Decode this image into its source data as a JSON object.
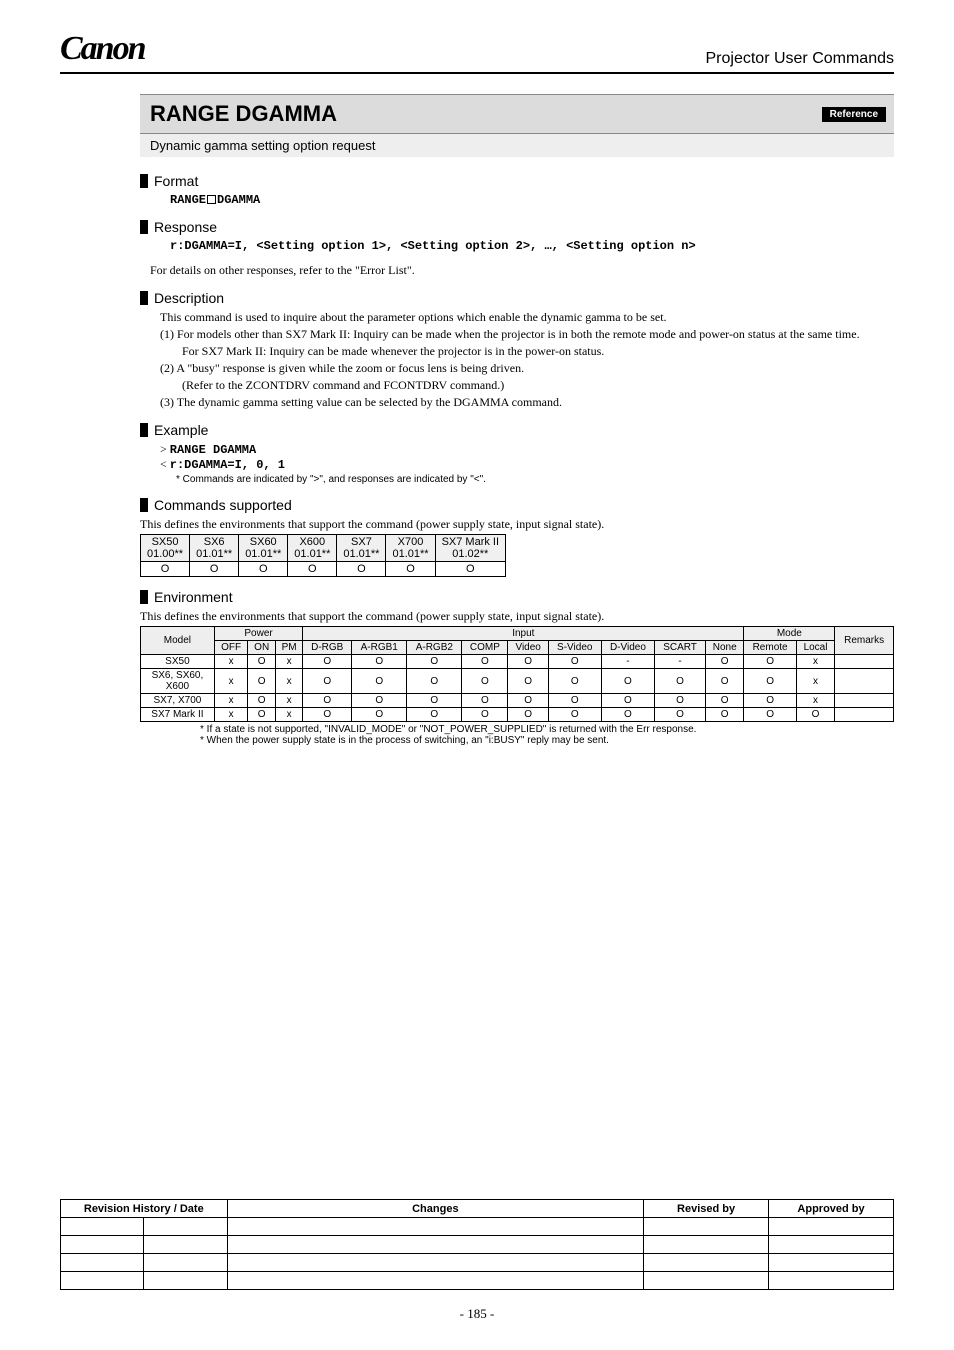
{
  "header": {
    "logo_text": "Canon",
    "doc_title": "Projector User Commands"
  },
  "title": {
    "main": "RANGE DGAMMA",
    "ref_badge": "Reference",
    "subtitle": "Dynamic gamma setting option request"
  },
  "format": {
    "heading": "Format",
    "code_left": "RANGE",
    "code_right": "DGAMMA"
  },
  "response": {
    "heading": "Response",
    "code": "r:DGAMMA=I, <Setting option 1>, <Setting option 2>, …, <Setting option n>",
    "note": "For details on other responses, refer to the \"Error List\"."
  },
  "description": {
    "heading": "Description",
    "intro": "This command is used to inquire about the parameter options which enable the dynamic gamma to be set.",
    "items": [
      "(1)  For models other than SX7 Mark II: Inquiry can be made when the projector is in both the remote mode and power-on status at the same time.",
      "For SX7 Mark II: Inquiry can be made whenever the projector is in the power-on status.",
      "(2)  A \"busy\" response is given while the zoom or focus lens is being driven.",
      "(Refer to the ZCONTDRV command and FCONTDRV command.)",
      "(3)  The dynamic gamma setting value can be selected by the DGAMMA command."
    ]
  },
  "example": {
    "heading": "Example",
    "send": "RANGE DGAMMA",
    "recv": "r:DGAMMA=I, 0, 1",
    "note": "* Commands are indicated by \">\", and responses are indicated by \"<\"."
  },
  "commands_supported": {
    "heading": "Commands supported",
    "intro": "This defines the environments that support the command (power supply state, input signal state).",
    "models": [
      {
        "name": "SX50",
        "ver": "01.00**",
        "val": "O"
      },
      {
        "name": "SX6",
        "ver": "01.01**",
        "val": "O"
      },
      {
        "name": "SX60",
        "ver": "01.01**",
        "val": "O"
      },
      {
        "name": "X600",
        "ver": "01.01**",
        "val": "O"
      },
      {
        "name": "SX7",
        "ver": "01.01**",
        "val": "O"
      },
      {
        "name": "X700",
        "ver": "01.01**",
        "val": "O"
      },
      {
        "name": "SX7 Mark II",
        "ver": "01.02**",
        "val": "O"
      }
    ]
  },
  "environment": {
    "heading": "Environment",
    "intro": "This defines the environments that support the command (power supply state, input signal state).",
    "group_headers": {
      "model": "Model",
      "power": "Power",
      "input": "Input",
      "mode": "Mode",
      "remarks": "Remarks"
    },
    "sub_headers": [
      "OFF",
      "ON",
      "PM",
      "D-RGB",
      "A-RGB1",
      "A-RGB2",
      "COMP",
      "Video",
      "S-Video",
      "D-Video",
      "SCART",
      "None",
      "Remote",
      "Local"
    ],
    "rows": [
      {
        "model": "SX50",
        "cells": [
          "x",
          "O",
          "x",
          "O",
          "O",
          "O",
          "O",
          "O",
          "O",
          "-",
          "-",
          "O",
          "O",
          "x"
        ],
        "remarks": ""
      },
      {
        "model": "SX6, SX60, X600",
        "cells": [
          "x",
          "O",
          "x",
          "O",
          "O",
          "O",
          "O",
          "O",
          "O",
          "O",
          "O",
          "O",
          "O",
          "x"
        ],
        "remarks": ""
      },
      {
        "model": "SX7, X700",
        "cells": [
          "x",
          "O",
          "x",
          "O",
          "O",
          "O",
          "O",
          "O",
          "O",
          "O",
          "O",
          "O",
          "O",
          "x"
        ],
        "remarks": ""
      },
      {
        "model": "SX7 Mark II",
        "cells": [
          "x",
          "O",
          "x",
          "O",
          "O",
          "O",
          "O",
          "O",
          "O",
          "O",
          "O",
          "O",
          "O",
          "O"
        ],
        "remarks": ""
      }
    ],
    "footnotes": [
      "*   If a state is not supported, \"INVALID_MODE\" or \"NOT_POWER_SUPPLIED\" is returned with the Err response.",
      "*   When the power supply state is in the process of switching, an \"i:BUSY\" reply may be sent."
    ]
  },
  "revision": {
    "headers": [
      "Revision History / Date",
      "Changes",
      "Revised by",
      "Approved by"
    ],
    "blank_rows": 4
  },
  "page_number": "- 185 -",
  "colors": {
    "title_bg": "#dcdcdc",
    "subtitle_bg": "#eeeeee",
    "table_head_bg": "#eeeeee"
  }
}
